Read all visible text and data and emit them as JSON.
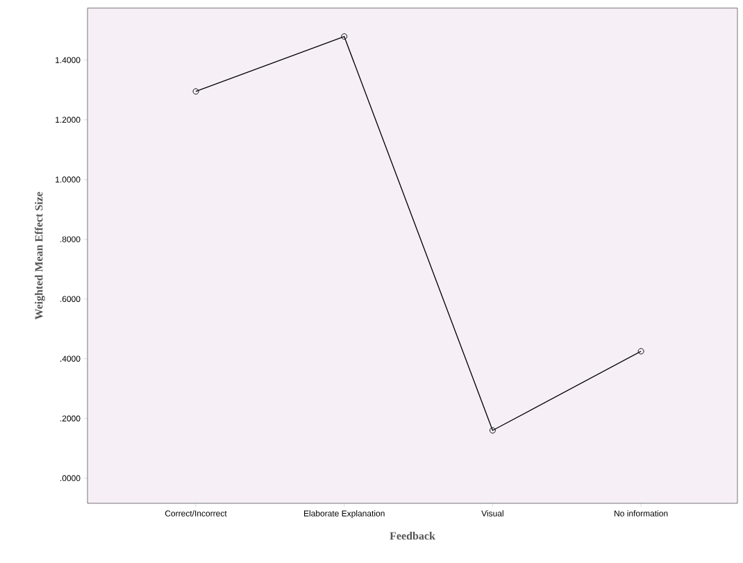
{
  "chart_data": {
    "type": "line",
    "xlabel": "Feedback",
    "ylabel": "Weighted Mean Effect Size",
    "categories": [
      "Correct/Incorrect",
      "Elaborate Explanation",
      "Visual",
      "No information"
    ],
    "values": [
      1.295,
      1.479,
      0.16,
      0.425
    ],
    "color": "#000000",
    "marker": "circle",
    "line_style": "solid",
    "grid": false,
    "ylim": [
      -0.084,
      1.574
    ],
    "yticks": [
      {
        "value": 0,
        "label": ".0000"
      },
      {
        "value": 0.2,
        "label": ".2000"
      },
      {
        "value": 0.4,
        "label": ".4000"
      },
      {
        "value": 0.6,
        "label": ".6000"
      },
      {
        "value": 0.8,
        "label": ".8000"
      },
      {
        "value": 1.0,
        "label": "1.0000"
      },
      {
        "value": 1.2,
        "label": "1.2000"
      },
      {
        "value": 1.4,
        "label": "1.4000"
      }
    ]
  }
}
